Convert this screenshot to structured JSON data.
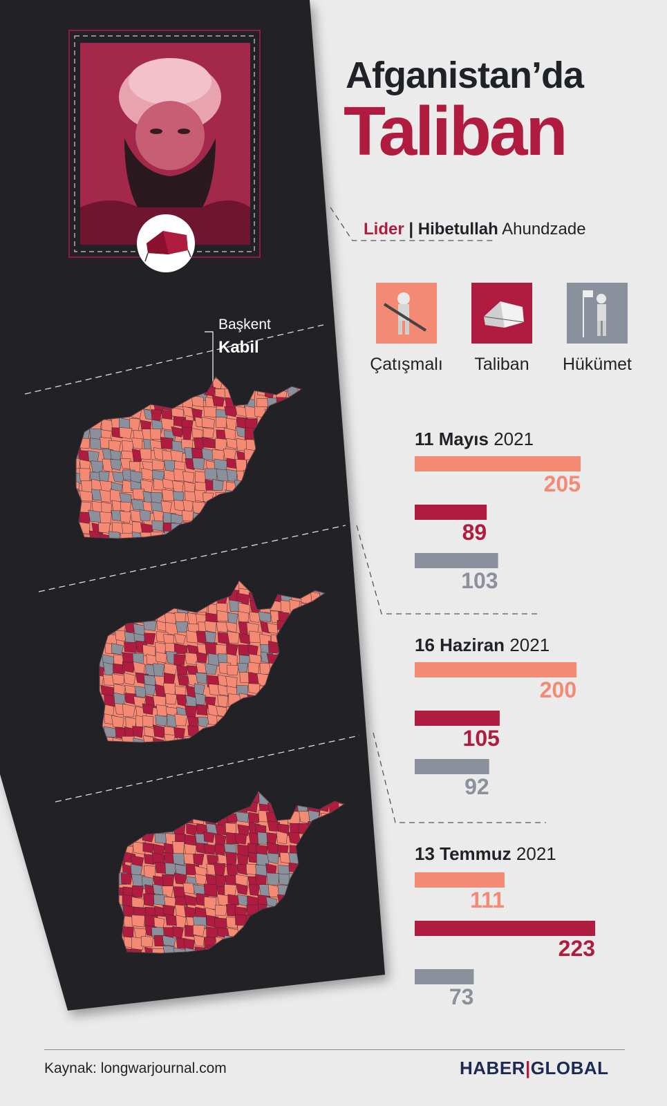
{
  "title": {
    "line1": "Afganistan’da",
    "line2": "Taliban"
  },
  "leader": {
    "role": "Lider",
    "separator": "|",
    "first_name": "Hibetullah",
    "last_name": "Ahundzade"
  },
  "legend": [
    {
      "label": "Çatışmalı",
      "color": "#f48a73",
      "icon": "soldier-rifle-icon"
    },
    {
      "label": "Taliban",
      "color": "#b01b40",
      "icon": "tent-icon"
    },
    {
      "label": "Hükümet",
      "color": "#8a919c",
      "icon": "soldier-flag-icon"
    }
  ],
  "capital": {
    "label": "Başkent",
    "name": "Kabil"
  },
  "colors": {
    "dark_panel": "#232428",
    "contested": "#f48a73",
    "taliban": "#b01b40",
    "government": "#8a919c",
    "background": "#ebebeb"
  },
  "chart_data": {
    "type": "bar",
    "categories": [
      "Çatışmalı",
      "Taliban",
      "Hükümet"
    ],
    "periods": [
      {
        "date_bold": "11 Mayıs",
        "year": "2021",
        "values": [
          205,
          89,
          103
        ]
      },
      {
        "date_bold": "16 Haziran",
        "year": "2021",
        "values": [
          200,
          105,
          92
        ]
      },
      {
        "date_bold": "13 Temmuz",
        "year": "2021",
        "values": [
          111,
          223,
          73
        ]
      }
    ]
  },
  "footer": {
    "source": "Kaynak: longwarjournal.com",
    "brand_left": "HABER",
    "brand_sep": "|",
    "brand_right": "GLOBAL"
  }
}
